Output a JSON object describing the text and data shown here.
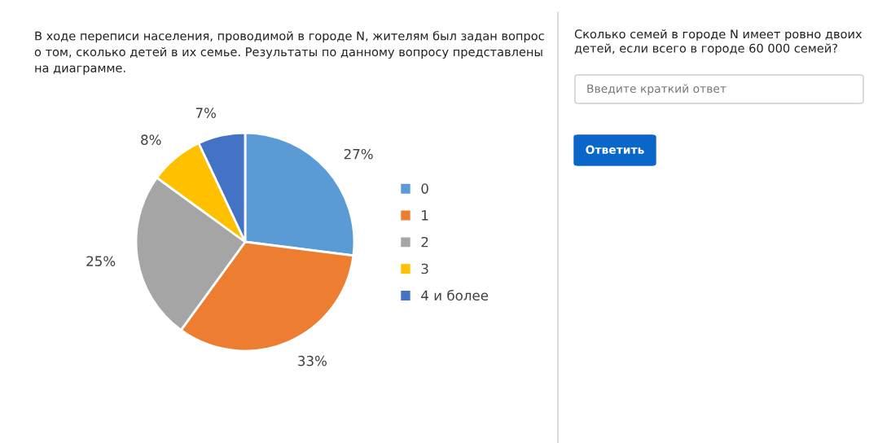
{
  "chart_data": {
    "type": "pie",
    "title": "В ходе переписи населения, проводимой в городе N, жителям был задан вопрос\nо том, сколько детей в их семье. Результаты по данному вопросу представлены\nна диаграмме.",
    "categories": [
      "0",
      "1",
      "2",
      "3",
      "4 и более"
    ],
    "values": [
      27,
      33,
      25,
      8,
      7
    ],
    "colors": [
      "#5b9bd5",
      "#ed7d31",
      "#a5a5a5",
      "#ffc000",
      "#4472c4"
    ],
    "value_labels": [
      "27%",
      "33%",
      "25%",
      "8%",
      "7%"
    ],
    "legend": "right",
    "annotations": [
      "Сколько семей в городе N имеет ровно двоих\nдетей, если всего в городе 60 000 семей?",
      "Введите краткий ответ",
      "Ответить"
    ]
  }
}
